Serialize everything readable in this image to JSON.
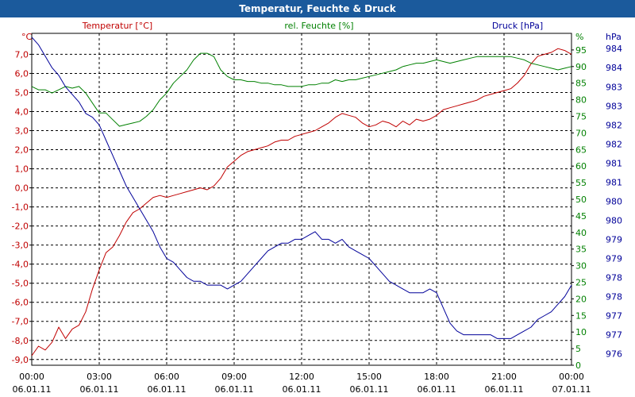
{
  "window": {
    "title": "Temperatur, Feuchte & Druck"
  },
  "chart_data": {
    "type": "line",
    "title": "Temperatur, Feuchte & Druck",
    "x_ticks": [
      {
        "time": "00:00",
        "date": "06.01.11",
        "hours": 0
      },
      {
        "time": "03:00",
        "date": "06.01.11",
        "hours": 3
      },
      {
        "time": "06:00",
        "date": "06.01.11",
        "hours": 6
      },
      {
        "time": "09:00",
        "date": "06.01.11",
        "hours": 9
      },
      {
        "time": "12:00",
        "date": "06.01.11",
        "hours": 12
      },
      {
        "time": "15:00",
        "date": "06.01.11",
        "hours": 15
      },
      {
        "time": "18:00",
        "date": "06.01.11",
        "hours": 18
      },
      {
        "time": "21:00",
        "date": "06.01.11",
        "hours": 21
      },
      {
        "time": "00:00",
        "date": "07.01.11",
        "hours": 24
      }
    ],
    "x_range": [
      0,
      24
    ],
    "grid": true,
    "axes": {
      "temperature": {
        "label": "Temperatur [°C]",
        "unit": "°C",
        "color": "#c00000",
        "range": [
          -9.3,
          8.1
        ],
        "ticks": [
          {
            "v": 7,
            "t": "7,0"
          },
          {
            "v": 6,
            "t": "6,0"
          },
          {
            "v": 5,
            "t": "5,0"
          },
          {
            "v": 4,
            "t": "4,0"
          },
          {
            "v": 3,
            "t": "3,0"
          },
          {
            "v": 2,
            "t": "2,0"
          },
          {
            "v": 1,
            "t": "1,0"
          },
          {
            "v": 0,
            "t": "0,0"
          },
          {
            "v": -1,
            "t": "-1,0"
          },
          {
            "v": -2,
            "t": "-2,0"
          },
          {
            "v": -3,
            "t": "-3,0"
          },
          {
            "v": -4,
            "t": "-4,0"
          },
          {
            "v": -5,
            "t": "-5,0"
          },
          {
            "v": -6,
            "t": "-6,0"
          },
          {
            "v": -7,
            "t": "-7,0"
          },
          {
            "v": -8,
            "t": "-8,0"
          },
          {
            "v": -9,
            "t": "-9,0"
          }
        ]
      },
      "humidity": {
        "label": "rel. Feuchte [%]",
        "unit": "%",
        "color": "#008000",
        "range": [
          0,
          100
        ],
        "ticks": [
          {
            "v": 95,
            "t": "95"
          },
          {
            "v": 90,
            "t": "90"
          },
          {
            "v": 85,
            "t": "85"
          },
          {
            "v": 80,
            "t": "80"
          },
          {
            "v": 75,
            "t": "75"
          },
          {
            "v": 70,
            "t": "70"
          },
          {
            "v": 65,
            "t": "65"
          },
          {
            "v": 60,
            "t": "60"
          },
          {
            "v": 55,
            "t": "55"
          },
          {
            "v": 50,
            "t": "50"
          },
          {
            "v": 45,
            "t": "45"
          },
          {
            "v": 40,
            "t": "40"
          },
          {
            "v": 35,
            "t": "35"
          },
          {
            "v": 30,
            "t": "30"
          },
          {
            "v": 25,
            "t": "25"
          },
          {
            "v": 20,
            "t": "20"
          },
          {
            "v": 15,
            "t": "15"
          },
          {
            "v": 10,
            "t": "10"
          },
          {
            "v": 5,
            "t": "5"
          },
          {
            "v": 0,
            "t": "0"
          }
        ]
      },
      "pressure": {
        "label": "Druck [hPa]",
        "unit": "hPa",
        "color": "#000099",
        "range": [
          975.7,
          984.4
        ],
        "ticks": [
          {
            "v": 984.0,
            "t": "984"
          },
          {
            "v": 983.5,
            "t": "984"
          },
          {
            "v": 983.0,
            "t": "983"
          },
          {
            "v": 982.5,
            "t": "983"
          },
          {
            "v": 982.0,
            "t": "982"
          },
          {
            "v": 981.5,
            "t": "982"
          },
          {
            "v": 981.0,
            "t": "981"
          },
          {
            "v": 980.5,
            "t": "981"
          },
          {
            "v": 980.0,
            "t": "980"
          },
          {
            "v": 979.5,
            "t": "980"
          },
          {
            "v": 979.0,
            "t": "979"
          },
          {
            "v": 978.5,
            "t": "979"
          },
          {
            "v": 978.0,
            "t": "978"
          },
          {
            "v": 977.5,
            "t": "978"
          },
          {
            "v": 977.0,
            "t": "977"
          },
          {
            "v": 976.5,
            "t": "977"
          },
          {
            "v": 976.0,
            "t": "976"
          }
        ]
      }
    },
    "series": [
      {
        "name": "Temperatur",
        "axis": "temperature",
        "color": "#c00000",
        "x": [
          0,
          0.3,
          0.6,
          0.9,
          1.2,
          1.5,
          1.8,
          2.1,
          2.4,
          2.7,
          3.0,
          3.3,
          3.6,
          3.9,
          4.2,
          4.5,
          4.8,
          5.1,
          5.4,
          5.7,
          6.0,
          6.3,
          6.6,
          6.9,
          7.2,
          7.5,
          7.8,
          8.1,
          8.4,
          8.7,
          9.0,
          9.3,
          9.6,
          9.9,
          10.2,
          10.5,
          10.8,
          11.1,
          11.4,
          11.7,
          12.0,
          12.3,
          12.6,
          12.9,
          13.2,
          13.5,
          13.8,
          14.1,
          14.4,
          14.7,
          15.0,
          15.3,
          15.6,
          15.9,
          16.2,
          16.5,
          16.8,
          17.1,
          17.4,
          17.7,
          18.0,
          18.3,
          18.6,
          18.9,
          19.2,
          19.5,
          19.8,
          20.1,
          20.4,
          20.7,
          21.0,
          21.3,
          21.6,
          21.9,
          22.2,
          22.5,
          22.8,
          23.1,
          23.4,
          23.7,
          24.0
        ],
        "values": [
          -8.8,
          -8.3,
          -8.5,
          -8.1,
          -7.3,
          -7.9,
          -7.4,
          -7.2,
          -6.5,
          -5.3,
          -4.3,
          -3.4,
          -3.1,
          -2.5,
          -1.8,
          -1.3,
          -1.1,
          -0.8,
          -0.5,
          -0.4,
          -0.5,
          -0.4,
          -0.3,
          -0.2,
          -0.1,
          0.0,
          -0.1,
          0.1,
          0.5,
          1.1,
          1.4,
          1.7,
          1.9,
          2.0,
          2.1,
          2.2,
          2.4,
          2.5,
          2.5,
          2.7,
          2.8,
          2.9,
          3.0,
          3.2,
          3.4,
          3.7,
          3.9,
          3.8,
          3.7,
          3.4,
          3.2,
          3.3,
          3.5,
          3.4,
          3.2,
          3.5,
          3.3,
          3.6,
          3.5,
          3.6,
          3.8,
          4.1,
          4.2,
          4.3,
          4.4,
          4.5,
          4.6,
          4.8,
          4.9,
          5.0,
          5.1,
          5.2,
          5.5,
          5.9,
          6.5,
          6.9,
          7.0,
          7.1,
          7.3,
          7.2,
          7.0
        ]
      },
      {
        "name": "rel. Feuchte",
        "axis": "humidity",
        "color": "#008000",
        "x": [
          0,
          0.3,
          0.6,
          0.9,
          1.2,
          1.5,
          1.8,
          2.1,
          2.4,
          2.7,
          3.0,
          3.3,
          3.6,
          3.9,
          4.2,
          4.5,
          4.8,
          5.1,
          5.4,
          5.7,
          6.0,
          6.3,
          6.6,
          6.9,
          7.2,
          7.5,
          7.8,
          8.1,
          8.4,
          8.7,
          9.0,
          9.3,
          9.6,
          9.9,
          10.2,
          10.5,
          10.8,
          11.1,
          11.4,
          11.7,
          12.0,
          12.3,
          12.6,
          12.9,
          13.2,
          13.5,
          13.8,
          14.1,
          14.4,
          14.7,
          15.0,
          15.3,
          15.6,
          15.9,
          16.2,
          16.5,
          16.8,
          17.1,
          17.4,
          17.7,
          18.0,
          18.3,
          18.6,
          18.9,
          19.2,
          19.5,
          19.8,
          20.1,
          20.4,
          20.7,
          21.0,
          21.3,
          21.6,
          21.9,
          22.2,
          22.5,
          22.8,
          23.1,
          23.4,
          23.7,
          24.0
        ],
        "values": [
          84.0,
          83.0,
          83.0,
          82.0,
          83.0,
          84.0,
          83.5,
          84.0,
          82.0,
          79.0,
          76.0,
          76.0,
          74.0,
          72.0,
          72.5,
          73.0,
          73.5,
          75.0,
          77.0,
          80.0,
          82.0,
          85.0,
          87.0,
          89.0,
          92.0,
          94.0,
          94.0,
          93.0,
          89.0,
          87.0,
          86.0,
          86.0,
          85.5,
          85.5,
          85.0,
          85.0,
          84.5,
          84.5,
          84.0,
          84.0,
          84.0,
          84.5,
          84.5,
          85.0,
          85.0,
          86.0,
          85.5,
          86.0,
          86.0,
          86.5,
          87.0,
          87.5,
          88.0,
          88.5,
          89.0,
          90.0,
          90.5,
          91.0,
          91.0,
          91.5,
          92.0,
          91.5,
          91.0,
          91.5,
          92.0,
          92.5,
          93.0,
          93.0,
          93.0,
          93.0,
          93.0,
          93.0,
          92.5,
          92.0,
          91.0,
          90.5,
          90.0,
          89.5,
          89.0,
          89.5,
          90.0
        ]
      },
      {
        "name": "Druck",
        "axis": "pressure",
        "color": "#000099",
        "x": [
          0,
          0.3,
          0.6,
          0.9,
          1.2,
          1.5,
          1.8,
          2.1,
          2.4,
          2.7,
          3.0,
          3.3,
          3.6,
          3.9,
          4.2,
          4.5,
          4.8,
          5.1,
          5.4,
          5.7,
          6.0,
          6.3,
          6.6,
          6.9,
          7.2,
          7.5,
          7.8,
          8.1,
          8.4,
          8.7,
          9.0,
          9.3,
          9.6,
          9.9,
          10.2,
          10.5,
          10.8,
          11.1,
          11.4,
          11.7,
          12.0,
          12.3,
          12.6,
          12.9,
          13.2,
          13.5,
          13.8,
          14.1,
          14.4,
          14.7,
          15.0,
          15.3,
          15.6,
          15.9,
          16.2,
          16.5,
          16.8,
          17.1,
          17.4,
          17.7,
          18.0,
          18.3,
          18.6,
          18.9,
          19.2,
          19.5,
          19.8,
          20.1,
          20.4,
          20.7,
          21.0,
          21.3,
          21.6,
          21.9,
          22.2,
          22.5,
          22.8,
          23.1,
          23.4,
          23.7,
          24.0
        ],
        "values": [
          984.3,
          984.1,
          983.8,
          983.5,
          983.3,
          983.0,
          982.8,
          982.6,
          982.3,
          982.2,
          982.0,
          981.6,
          981.2,
          980.8,
          980.4,
          980.1,
          979.8,
          979.5,
          979.2,
          978.8,
          978.5,
          978.4,
          978.2,
          978.0,
          977.9,
          977.9,
          977.8,
          977.8,
          977.8,
          977.7,
          977.8,
          977.9,
          978.1,
          978.3,
          978.5,
          978.7,
          978.8,
          978.9,
          978.9,
          979.0,
          979.0,
          979.1,
          979.2,
          979.0,
          979.0,
          978.9,
          979.0,
          978.8,
          978.7,
          978.6,
          978.5,
          978.3,
          978.1,
          977.9,
          977.8,
          977.7,
          977.6,
          977.6,
          977.6,
          977.7,
          977.6,
          977.2,
          976.8,
          976.6,
          976.5,
          976.5,
          976.5,
          976.5,
          976.5,
          976.4,
          976.4,
          976.4,
          976.5,
          976.6,
          976.7,
          976.9,
          977.0,
          977.1,
          977.3,
          977.5,
          977.8
        ]
      }
    ]
  }
}
